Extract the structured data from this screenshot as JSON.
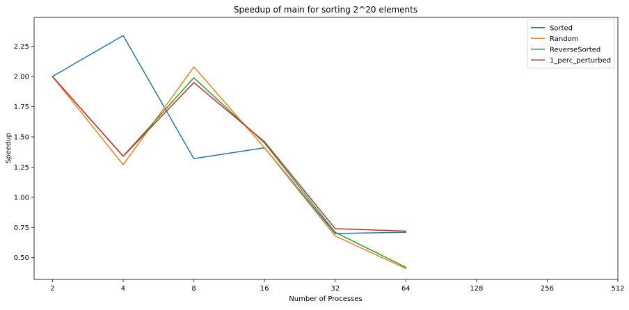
{
  "chart_data": {
    "type": "line",
    "title": "Speedup of main for sorting 2^20 elements",
    "xlabel": "Number of Processes",
    "ylabel": "Speedup",
    "x_scale": "log2",
    "x_ticks": [
      "2",
      "4",
      "8",
      "16",
      "32",
      "64",
      "128",
      "256",
      "512"
    ],
    "x_values": [
      2,
      4,
      8,
      16,
      32,
      64
    ],
    "xlim": [
      1.67,
      512
    ],
    "ylim": [
      0.32,
      2.49
    ],
    "y_ticks": [
      0.5,
      0.75,
      1.0,
      1.25,
      1.5,
      1.75,
      2.0,
      2.25
    ],
    "y_tick_labels": [
      "0.50",
      "0.75",
      "1.00",
      "1.25",
      "1.50",
      "1.75",
      "2.00",
      "2.25"
    ],
    "grid": false,
    "legend_position": "top-right",
    "series": [
      {
        "name": "Sorted",
        "color": "#1f77b4",
        "values": [
          2.0,
          2.34,
          1.32,
          1.41,
          0.7,
          0.71
        ]
      },
      {
        "name": "Random",
        "color": "#ff7f0e",
        "values": [
          2.0,
          1.27,
          2.08,
          1.41,
          0.68,
          0.41
        ]
      },
      {
        "name": "ReverseSorted",
        "color": "#2ca02c",
        "values": [
          2.0,
          1.34,
          1.99,
          1.45,
          0.71,
          0.42
        ]
      },
      {
        "name": "1_perc_perturbed",
        "color": "#d62728",
        "values": [
          2.0,
          1.34,
          1.95,
          1.46,
          0.74,
          0.72
        ]
      }
    ]
  }
}
